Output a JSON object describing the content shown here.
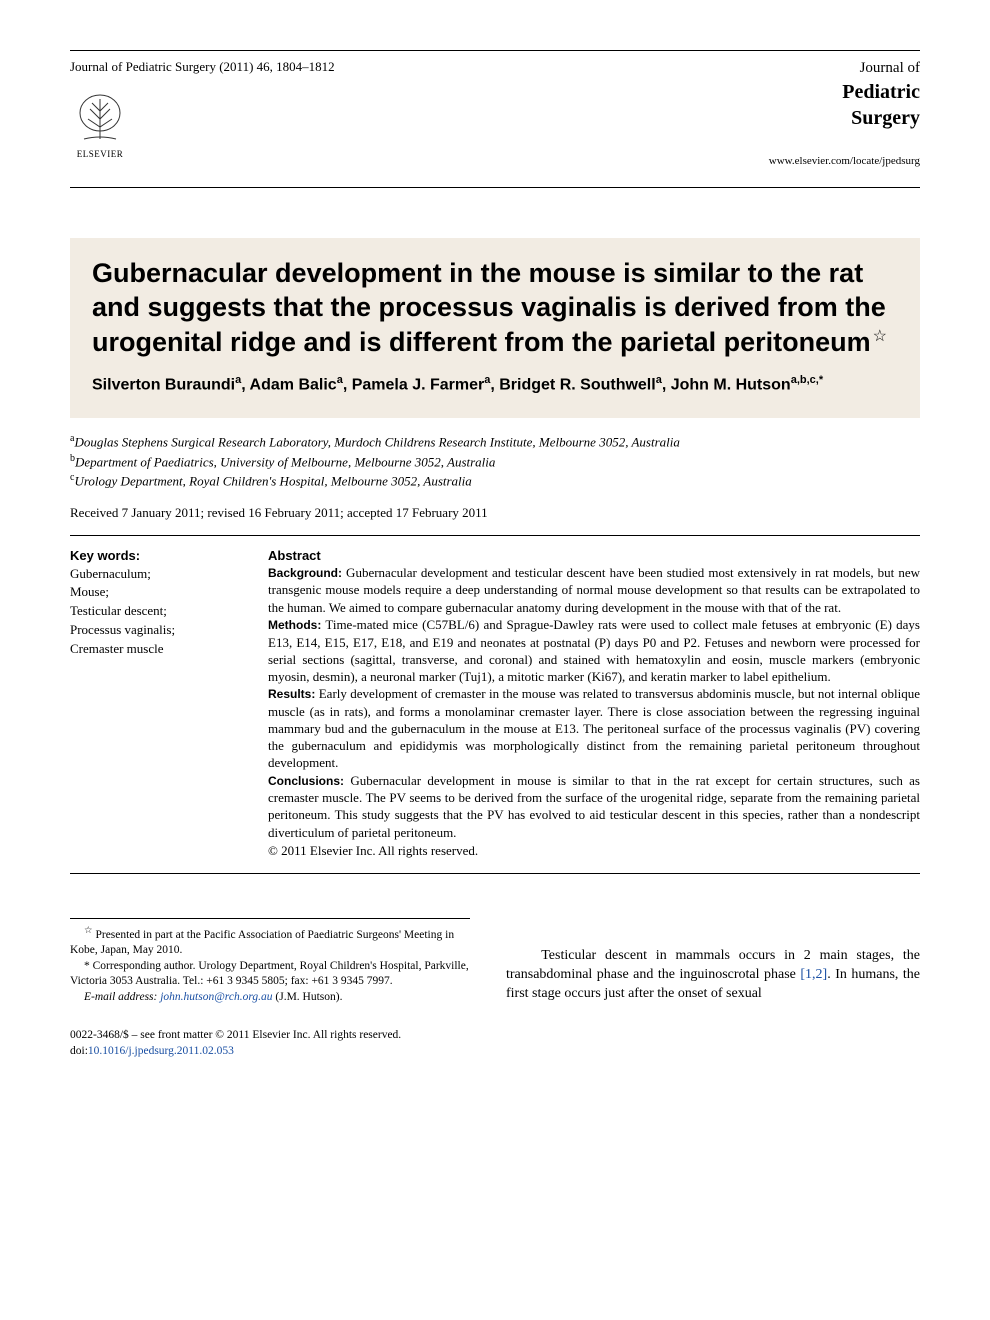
{
  "header": {
    "journal_ref": "Journal of Pediatric Surgery (2011) 46, 1804–1812",
    "publisher_name": "ELSEVIER",
    "journal_brand_line1": "Journal of",
    "journal_brand_line2": "Pediatric",
    "journal_brand_line3": "Surgery",
    "journal_url": "www.elsevier.com/locate/jpedsurg"
  },
  "article": {
    "title": "Gubernacular development in the mouse is similar to the rat and suggests that the processus vaginalis is derived from the urogenital ridge and is different from the parietal peritoneum",
    "title_note_symbol": "☆",
    "authors_html": "Silverton Buraundi<sup>a</sup>, Adam Balic<sup>a</sup>, Pamela J. Farmer<sup>a</sup>, Bridget R. Southwell<sup>a</sup>, John M. Hutson<sup>a,b,c,*</sup>",
    "affiliations": [
      {
        "sup": "a",
        "text": "Douglas Stephens Surgical Research Laboratory, Murdoch Childrens Research Institute, Melbourne 3052, Australia"
      },
      {
        "sup": "b",
        "text": "Department of Paediatrics, University of Melbourne, Melbourne 3052, Australia"
      },
      {
        "sup": "c",
        "text": "Urology Department, Royal Children's Hospital, Melbourne 3052, Australia"
      }
    ],
    "dates": "Received 7 January 2011; revised 16 February 2011; accepted 17 February 2011"
  },
  "keywords": {
    "header": "Key words:",
    "items": [
      "Gubernaculum;",
      "Mouse;",
      "Testicular descent;",
      "Processus vaginalis;",
      "Cremaster muscle"
    ]
  },
  "abstract": {
    "header": "Abstract",
    "sections": [
      {
        "label": "Background:",
        "text": "Gubernacular development and testicular descent have been studied most extensively in rat models, but new transgenic mouse models require a deep understanding of normal mouse development so that results can be extrapolated to the human. We aimed to compare gubernacular anatomy during development in the mouse with that of the rat."
      },
      {
        "label": "Methods:",
        "text": "Time-mated mice (C57BL/6) and Sprague-Dawley rats were used to collect male fetuses at embryonic (E) days E13, E14, E15, E17, E18, and E19 and neonates at postnatal (P) days P0 and P2. Fetuses and newborn were processed for serial sections (sagittal, transverse, and coronal) and stained with hematoxylin and eosin, muscle markers (embryonic myosin, desmin), a neuronal marker (Tuj1), a mitotic marker (Ki67), and keratin marker to label epithelium."
      },
      {
        "label": "Results:",
        "text": "Early development of cremaster in the mouse was related to transversus abdominis muscle, but not internal oblique muscle (as in rats), and forms a monolaminar cremaster layer. There is close association between the regressing inguinal mammary bud and the gubernaculum in the mouse at E13. The peritoneal surface of the processus vaginalis (PV) covering the gubernaculum and epididymis was morphologically distinct from the remaining parietal peritoneum throughout development."
      },
      {
        "label": "Conclusions:",
        "text": "Gubernacular development in mouse is similar to that in the rat except for certain structures, such as cremaster muscle. The PV seems to be derived from the surface of the urogenital ridge, separate from the remaining parietal peritoneum. This study suggests that the PV has evolved to aid testicular descent in this species, rather than a nondescript diverticulum of parietal peritoneum."
      }
    ],
    "copyright": "© 2011 Elsevier Inc. All rights reserved."
  },
  "footnotes": {
    "presented": "Presented in part at the Pacific Association of Paediatric Surgeons' Meeting in Kobe, Japan, May 2010.",
    "presented_symbol": "☆",
    "corresponding": "Corresponding author. Urology Department, Royal Children's Hospital, Parkville, Victoria 3053 Australia. Tel.: +61 3 9345 5805; fax: +61 3 9345 7997.",
    "corresponding_symbol": "*",
    "email_label": "E-mail address:",
    "email": "john.hutson@rch.org.au",
    "email_author": "(J.M. Hutson)."
  },
  "intro": {
    "text_before_ref": "Testicular descent in mammals occurs in 2 main stages, the transabdominal phase and the inguinoscrotal phase ",
    "ref": "[1,2]",
    "text_after_ref": ". In humans, the first stage occurs just after the onset of sexual"
  },
  "bottom": {
    "issn_line": "0022-3468/$ – see front matter © 2011 Elsevier Inc. All rights reserved.",
    "doi_label": "doi:",
    "doi": "10.1016/j.jpedsurg.2011.02.053"
  },
  "colors": {
    "title_bg": "#f2ece3",
    "link": "#1a4fa3",
    "text": "#000000",
    "bg": "#ffffff"
  }
}
